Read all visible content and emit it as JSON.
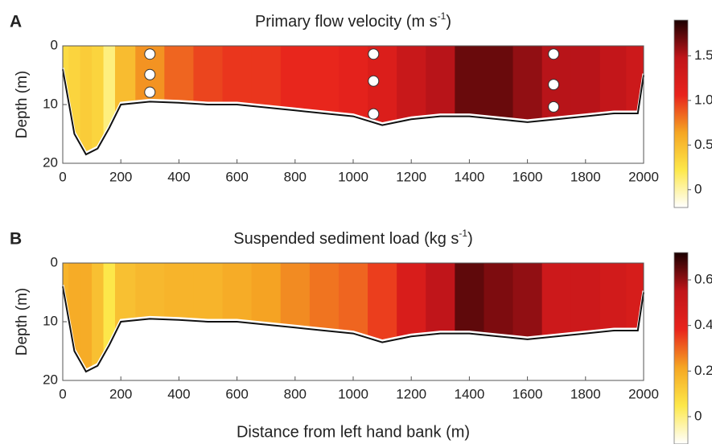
{
  "chart_data": [
    {
      "type": "heatmap",
      "panel_label": "A",
      "title": "Primary flow velocity (m s",
      "title_sup": "-1",
      "title_end": ")",
      "ylabel": "Depth (m)",
      "x": [
        0,
        40,
        80,
        120,
        160,
        200,
        300,
        400,
        500,
        600,
        700,
        800,
        900,
        1000,
        1100,
        1200,
        1300,
        1400,
        1500,
        1600,
        1700,
        1800,
        1900,
        1980,
        2000
      ],
      "values": [
        0.3,
        0.35,
        0.4,
        0.35,
        0.1,
        0.5,
        0.7,
        0.85,
        0.95,
        1.0,
        1.0,
        1.05,
        1.05,
        1.1,
        1.2,
        1.4,
        1.5,
        1.7,
        1.7,
        1.6,
        1.5,
        1.5,
        1.45,
        1.35,
        1.3
      ],
      "bed": [
        4,
        15,
        18.5,
        17.5,
        14,
        10,
        9.5,
        9.7,
        10,
        10,
        10.5,
        11,
        11.5,
        12,
        13.5,
        12.5,
        12,
        12,
        12.5,
        13,
        12.5,
        12,
        11.5,
        11.5,
        5
      ],
      "points": {
        "x": [
          300,
          300,
          300,
          1070,
          1070,
          1070,
          1690,
          1690,
          1690
        ],
        "y": [
          1.4,
          4.9,
          7.9,
          1.4,
          6,
          11.6,
          1.4,
          6.6,
          10.4
        ]
      },
      "xlim": [
        0,
        2000
      ],
      "xticks": [
        0,
        200,
        400,
        600,
        800,
        1000,
        1200,
        1400,
        1600,
        1800,
        2000
      ],
      "ylim": [
        0,
        20
      ],
      "yticks": [
        0,
        10,
        20
      ],
      "y_inverted": true,
      "clim": [
        -0.2,
        1.9
      ],
      "cticks": [
        0,
        0.5,
        {
          "value": 1.0,
          "label": "1.0"
        },
        1.5
      ],
      "colormap": [
        "#ffffff",
        "#fde84a",
        "#f5a623",
        "#e8231c",
        "#c0151a",
        "#1a0000"
      ]
    },
    {
      "type": "heatmap",
      "panel_label": "B",
      "title": "Suspended sediment load (kg s",
      "title_sup": "-1",
      "title_end": ")",
      "ylabel": "Depth (m)",
      "xlabel": "Distance from left hand bank (m)",
      "x": [
        0,
        40,
        80,
        120,
        160,
        200,
        300,
        400,
        500,
        600,
        700,
        800,
        900,
        1000,
        1100,
        1200,
        1300,
        1400,
        1500,
        1600,
        1700,
        1800,
        1900,
        1980,
        2000
      ],
      "values": [
        0.18,
        0.2,
        0.2,
        0.15,
        0.05,
        0.15,
        0.17,
        0.18,
        0.18,
        0.2,
        0.22,
        0.25,
        0.28,
        0.3,
        0.35,
        0.45,
        0.55,
        0.65,
        0.62,
        0.6,
        0.5,
        0.5,
        0.48,
        0.46,
        0.45
      ],
      "bed": [
        4,
        15,
        18.5,
        17.5,
        14,
        10,
        9.5,
        9.7,
        10,
        10,
        10.5,
        11,
        11.5,
        12,
        13.5,
        12.5,
        12,
        12,
        12.5,
        13,
        12.5,
        12,
        11.5,
        11.5,
        5
      ],
      "xlim": [
        0,
        2000
      ],
      "xticks": [
        0,
        200,
        400,
        600,
        800,
        1000,
        1200,
        1400,
        1600,
        1800,
        2000
      ],
      "ylim": [
        0,
        20
      ],
      "yticks": [
        0,
        10,
        20
      ],
      "y_inverted": true,
      "clim": [
        -0.12,
        0.72
      ],
      "cticks": [
        0,
        0.2,
        0.4,
        0.6
      ],
      "colormap": [
        "#ffffff",
        "#fde84a",
        "#f5a623",
        "#e8231c",
        "#c0151a",
        "#1a0000"
      ]
    }
  ]
}
